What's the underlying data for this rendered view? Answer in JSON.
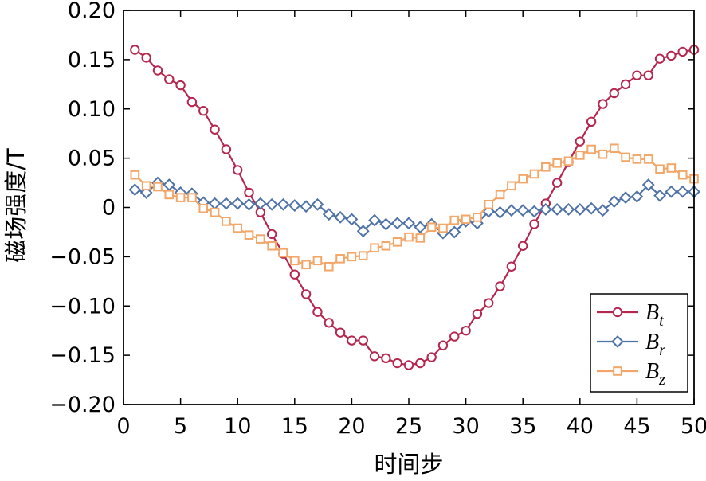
{
  "chart_data": {
    "type": "line",
    "title": "",
    "xlabel": "时间步",
    "ylabel": "磁场强度/T",
    "xlim": [
      0,
      50
    ],
    "ylim": [
      -0.2,
      0.2
    ],
    "xticks": [
      "0",
      "5",
      "10",
      "15",
      "20",
      "25",
      "30",
      "35",
      "40",
      "45",
      "50"
    ],
    "yticks": [
      "−0.20",
      "−0.15",
      "−0.10",
      "−0.05",
      "0",
      "0.05",
      "0.10",
      "0.15",
      "0.20"
    ],
    "xtick_values": [
      0,
      5,
      10,
      15,
      20,
      25,
      30,
      35,
      40,
      45,
      50
    ],
    "ytick_values": [
      -0.2,
      -0.15,
      -0.1,
      -0.05,
      0,
      0.05,
      0.1,
      0.15,
      0.2
    ],
    "grid": false,
    "legend_position": "bottom-right",
    "x": [
      1,
      2,
      3,
      4,
      5,
      6,
      7,
      8,
      9,
      10,
      11,
      12,
      13,
      14,
      15,
      16,
      17,
      18,
      19,
      20,
      21,
      22,
      23,
      24,
      25,
      26,
      27,
      28,
      29,
      30,
      31,
      32,
      33,
      34,
      35,
      36,
      37,
      38,
      39,
      40,
      41,
      42,
      43,
      44,
      45,
      46,
      47,
      48,
      49,
      50
    ],
    "series": [
      {
        "name": "Bt",
        "label_main": "B",
        "label_sub": "t",
        "color": "#b5274e",
        "marker": "circle",
        "values": [
          0.16,
          0.152,
          0.139,
          0.13,
          0.124,
          0.107,
          0.098,
          0.079,
          0.059,
          0.038,
          0.015,
          -0.005,
          -0.027,
          -0.047,
          -0.068,
          -0.088,
          -0.106,
          -0.117,
          -0.127,
          -0.135,
          -0.135,
          -0.151,
          -0.153,
          -0.158,
          -0.16,
          -0.158,
          -0.152,
          -0.14,
          -0.131,
          -0.125,
          -0.108,
          -0.097,
          -0.08,
          -0.06,
          -0.039,
          -0.017,
          0.004,
          0.025,
          0.046,
          0.067,
          0.087,
          0.105,
          0.116,
          0.125,
          0.134,
          0.134,
          0.151,
          0.154,
          0.158,
          0.16
        ]
      },
      {
        "name": "Br",
        "label_main": "B",
        "label_sub": "r",
        "color": "#4f73a6",
        "marker": "diamond",
        "values": [
          0.018,
          0.015,
          0.025,
          0.023,
          0.015,
          0.014,
          0.005,
          0.004,
          0.004,
          0.004,
          0.003,
          0.004,
          0.003,
          0.003,
          0.002,
          0.001,
          0.003,
          -0.007,
          -0.01,
          -0.012,
          -0.024,
          -0.013,
          -0.017,
          -0.016,
          -0.016,
          -0.02,
          -0.017,
          -0.026,
          -0.025,
          -0.014,
          -0.016,
          -0.004,
          -0.005,
          -0.003,
          -0.003,
          -0.004,
          -0.002,
          -0.002,
          -0.002,
          -0.002,
          -0.001,
          -0.003,
          0.006,
          0.01,
          0.011,
          0.023,
          0.012,
          0.016,
          0.016,
          0.016
        ]
      },
      {
        "name": "Bz",
        "label_main": "B",
        "label_sub": "z",
        "color": "#f2a668",
        "marker": "square",
        "values": [
          0.033,
          0.022,
          0.021,
          0.013,
          0.01,
          0.01,
          -0.001,
          -0.005,
          -0.014,
          -0.021,
          -0.028,
          -0.032,
          -0.039,
          -0.046,
          -0.054,
          -0.058,
          -0.054,
          -0.06,
          -0.052,
          -0.05,
          -0.049,
          -0.041,
          -0.039,
          -0.035,
          -0.03,
          -0.031,
          -0.02,
          -0.021,
          -0.013,
          -0.012,
          -0.01,
          0.003,
          0.013,
          0.022,
          0.029,
          0.034,
          0.041,
          0.045,
          0.047,
          0.053,
          0.059,
          0.054,
          0.06,
          0.051,
          0.049,
          0.049,
          0.039,
          0.04,
          0.033,
          0.029
        ]
      }
    ]
  }
}
